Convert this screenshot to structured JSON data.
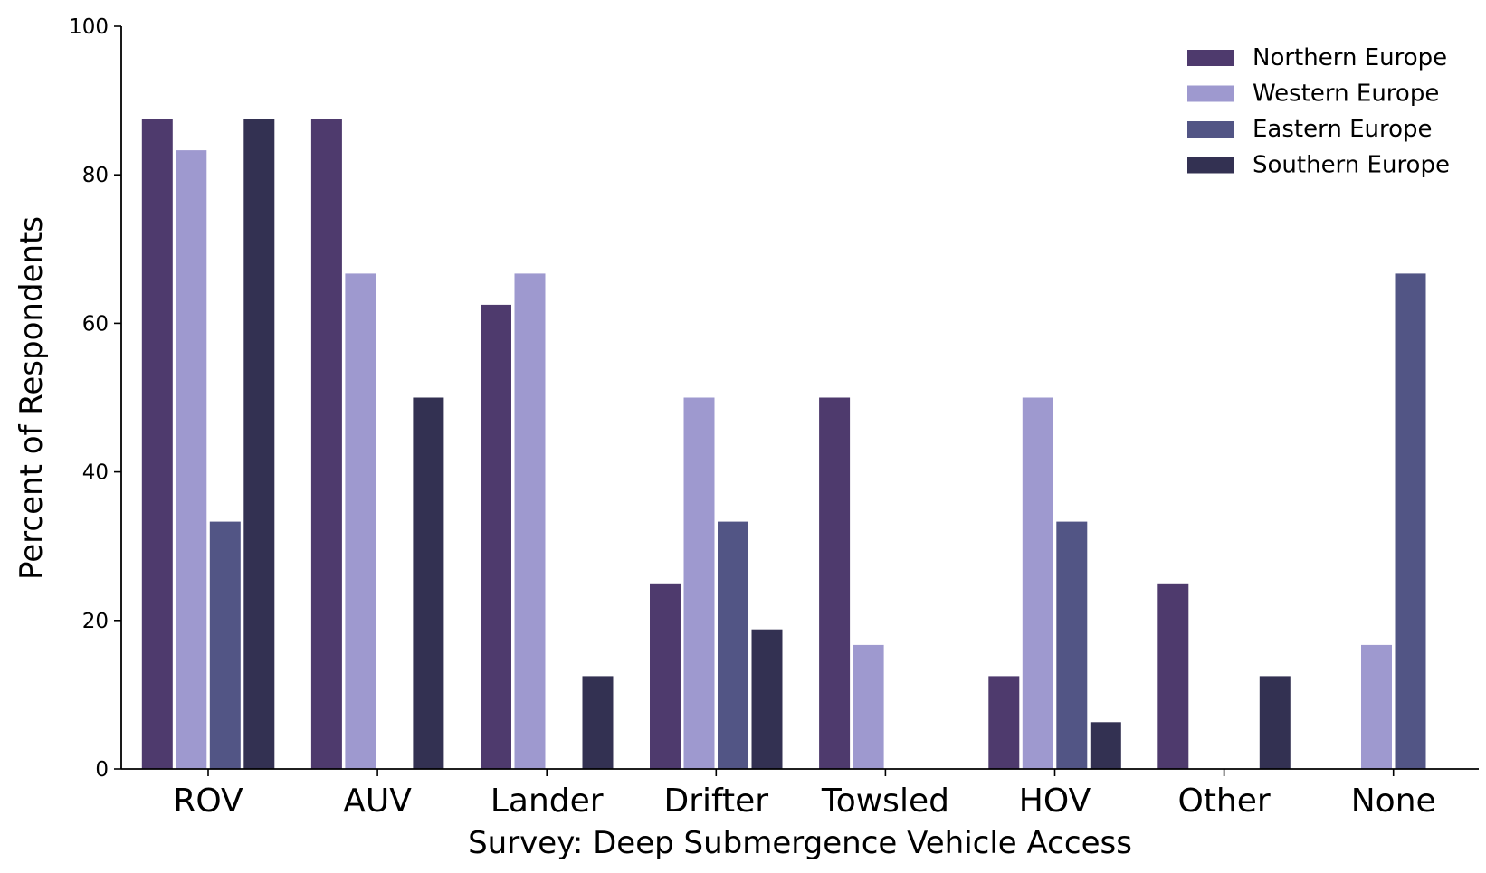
{
  "chart_data": {
    "type": "bar",
    "title": "",
    "xlabel": "Survey: Deep Submergence Vehicle Access",
    "ylabel": "Percent of Respondents",
    "ylim": [
      0,
      100
    ],
    "yticks": [
      0,
      20,
      40,
      60,
      80,
      100
    ],
    "grid": false,
    "legend_position": "top-right",
    "categories": [
      "ROV",
      "AUV",
      "Lander",
      "Drifter",
      "Towsled",
      "HOV",
      "Other",
      "None"
    ],
    "series": [
      {
        "name": "Northern Europe",
        "color": "#4e3a6d",
        "values": [
          87.5,
          87.5,
          62.5,
          25.0,
          50.0,
          12.5,
          25.0,
          0
        ]
      },
      {
        "name": "Western Europe",
        "color": "#9e99cf",
        "values": [
          83.3,
          66.7,
          66.7,
          50.0,
          16.7,
          50.0,
          0,
          16.7
        ]
      },
      {
        "name": "Eastern Europe",
        "color": "#525585",
        "values": [
          33.3,
          0,
          0,
          33.3,
          0,
          33.3,
          0,
          66.7
        ]
      },
      {
        "name": "Southern Europe",
        "color": "#333152",
        "values": [
          87.5,
          50.0,
          12.5,
          18.8,
          0,
          6.3,
          12.5,
          0
        ]
      }
    ]
  }
}
